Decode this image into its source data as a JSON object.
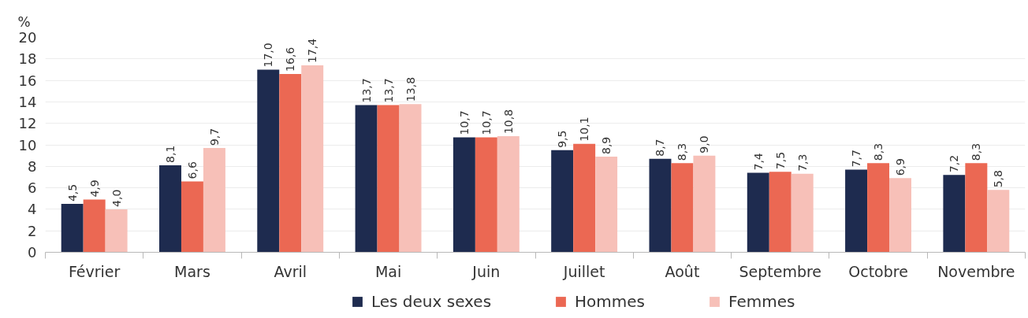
{
  "chart_data": {
    "type": "bar",
    "ylabel": "%",
    "categories": [
      "Février",
      "Mars",
      "Avril",
      "Mai",
      "Juin",
      "Juillet",
      "Août",
      "Septembre",
      "Octobre",
      "Novembre"
    ],
    "series": [
      {
        "name": "Les deux sexes",
        "color": "#1e2b4f",
        "values": [
          4.5,
          8.1,
          17.0,
          13.7,
          10.7,
          9.5,
          8.7,
          7.4,
          7.7,
          7.2
        ],
        "value_labels": [
          "4,5",
          "8,1",
          "17,0",
          "13,7",
          "10,7",
          "9,5",
          "8,7",
          "7,4",
          "7,7",
          "7,2"
        ]
      },
      {
        "name": "Hommes",
        "color": "#eb6853",
        "values": [
          4.9,
          6.6,
          16.6,
          13.7,
          10.7,
          10.1,
          8.3,
          7.5,
          8.3,
          8.3
        ],
        "value_labels": [
          "4,9",
          "6,6",
          "16,6",
          "13,7",
          "10,7",
          "10,1",
          "8,3",
          "7,5",
          "8,3",
          "8,3"
        ]
      },
      {
        "name": "Femmes",
        "color": "#f7c0b8",
        "values": [
          4.0,
          9.7,
          17.4,
          13.8,
          10.8,
          8.9,
          9.0,
          7.3,
          6.9,
          5.8
        ],
        "value_labels": [
          "4,0",
          "9,7",
          "17,4",
          "13,8",
          "10,8",
          "8,9",
          "9,0",
          "7,3",
          "6,9",
          "5,8"
        ]
      }
    ],
    "ylim": [
      0,
      20
    ],
    "yticks": [
      0,
      2,
      4,
      6,
      8,
      10,
      12,
      14,
      16,
      18,
      20
    ],
    "grid": "y",
    "legend": "bottom"
  }
}
